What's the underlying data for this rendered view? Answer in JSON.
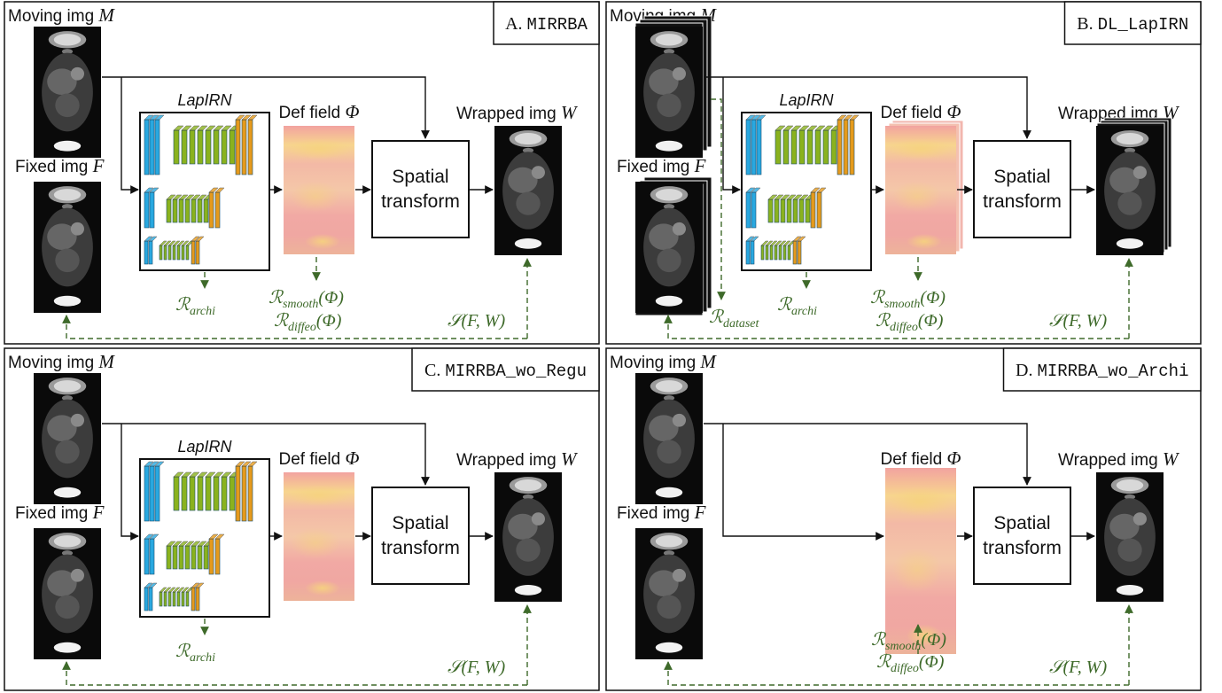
{
  "panels": [
    {
      "id": "A",
      "title_letter": "A.",
      "title_code": "MIRRBA",
      "moving_label": "Moving img",
      "moving_symbol": "M",
      "fixed_label": "Fixed img",
      "fixed_symbol": "F",
      "network_label": "LapIRN",
      "deffield_label": "Def field",
      "deffield_symbol": "Φ",
      "wrapped_label": "Wrapped img",
      "wrapped_symbol": "W",
      "transform_line1": "Spatial",
      "transform_line2": "transform",
      "reg_archi": "archi",
      "reg_smooth": "smooth",
      "reg_diffeo": "diffeo",
      "reg_arg": "(Φ)",
      "similarity": "S(F, W)",
      "has_network": true,
      "has_reg": true,
      "stacked": false
    },
    {
      "id": "B",
      "title_letter": "B.",
      "title_code": "DL_LapIRN",
      "moving_label": "Moving img",
      "moving_symbol": "M",
      "fixed_label": "Fixed img",
      "fixed_symbol": "F",
      "network_label": "LapIRN",
      "deffield_label": "Def field",
      "deffield_symbol": "Φ",
      "wrapped_label": "Wrapped img",
      "wrapped_symbol": "W",
      "transform_line1": "Spatial",
      "transform_line2": "transform",
      "reg_archi": "archi",
      "reg_dataset": "dataset",
      "reg_smooth": "smooth",
      "reg_diffeo": "diffeo",
      "reg_arg": "(Φ)",
      "similarity": "S(F, W)",
      "has_network": true,
      "has_reg": true,
      "stacked": true
    },
    {
      "id": "C",
      "title_letter": "C.",
      "title_code": "MIRRBA_wo_Regu",
      "moving_label": "Moving img",
      "moving_symbol": "M",
      "fixed_label": "Fixed img",
      "fixed_symbol": "F",
      "network_label": "LapIRN",
      "deffield_label": "Def field",
      "deffield_symbol": "Φ",
      "wrapped_label": "Wrapped img",
      "wrapped_symbol": "W",
      "transform_line1": "Spatial",
      "transform_line2": "transform",
      "reg_archi": "archi",
      "similarity": "S(F, W)",
      "has_network": true,
      "has_reg": false,
      "stacked": false
    },
    {
      "id": "D",
      "title_letter": "D.",
      "title_code": "MIRRBA_wo_Archi",
      "moving_label": "Moving img",
      "moving_symbol": "M",
      "fixed_label": "Fixed img",
      "fixed_symbol": "F",
      "deffield_label": "Def field",
      "deffield_symbol": "Φ",
      "wrapped_label": "Wrapped img",
      "wrapped_symbol": "W",
      "transform_line1": "Spatial",
      "transform_line2": "transform",
      "reg_smooth": "smooth",
      "reg_diffeo": "diffeo",
      "reg_arg": "(Φ)",
      "similarity": "S(F, W)",
      "has_network": false,
      "has_reg": true,
      "stacked": false
    }
  ],
  "colors": {
    "blue": "#29a8e0",
    "green": "#8ab21e",
    "orange": "#e59a1c",
    "reg_green": "#3e6a2a",
    "border": "#111111"
  }
}
